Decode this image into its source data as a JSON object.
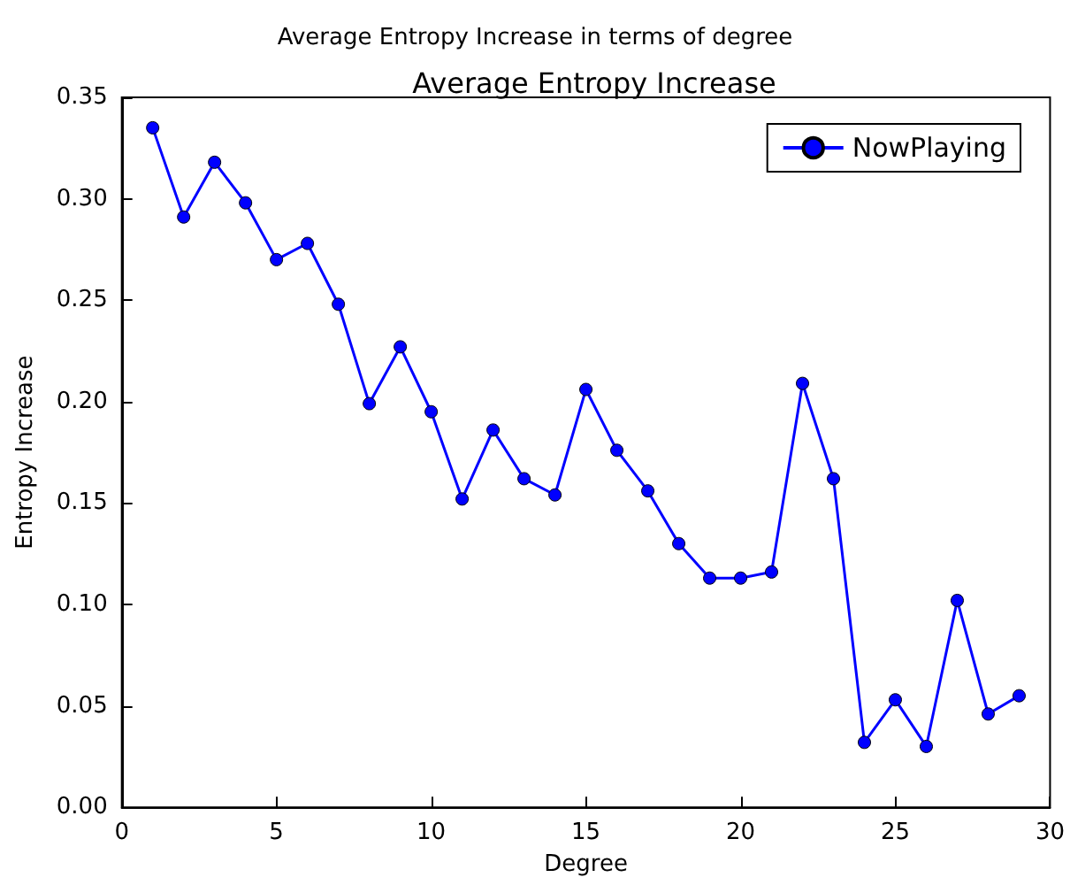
{
  "chart_data": {
    "type": "line",
    "title": "Average Entropy Increase in terms of degree",
    "subtitle": "Average Entropy Increase",
    "xlabel": "Degree",
    "ylabel": "Entropy Increase",
    "x": [
      1,
      2,
      3,
      4,
      5,
      6,
      7,
      8,
      9,
      10,
      11,
      12,
      13,
      14,
      15,
      16,
      17,
      18,
      19,
      20,
      21,
      22,
      23,
      24,
      25,
      26,
      27,
      28,
      29
    ],
    "series": [
      {
        "name": "NowPlaying",
        "color": "#0000ff",
        "values": [
          0.335,
          0.291,
          0.318,
          0.298,
          0.27,
          0.278,
          0.248,
          0.199,
          0.227,
          0.195,
          0.152,
          0.186,
          0.162,
          0.154,
          0.206,
          0.176,
          0.156,
          0.13,
          0.113,
          0.113,
          0.116,
          0.209,
          0.162,
          0.032,
          0.053,
          0.03,
          0.102,
          0.046,
          0.055
        ]
      }
    ],
    "xlim": [
      0,
      30
    ],
    "xticks": [
      0,
      5,
      10,
      15,
      20,
      25,
      30
    ],
    "ylim": [
      0,
      0.35
    ],
    "yticks": [
      {
        "value": 0,
        "label": "0.00"
      },
      0.05,
      {
        "value": 0.1,
        "label": "0.10"
      },
      0.15,
      {
        "value": 0.2,
        "label": "0.20"
      },
      0.25,
      {
        "value": 0.3,
        "label": "0.30"
      },
      0.35
    ],
    "grid": false,
    "legend": "top right",
    "marker": "circle",
    "line_style": "solid"
  }
}
